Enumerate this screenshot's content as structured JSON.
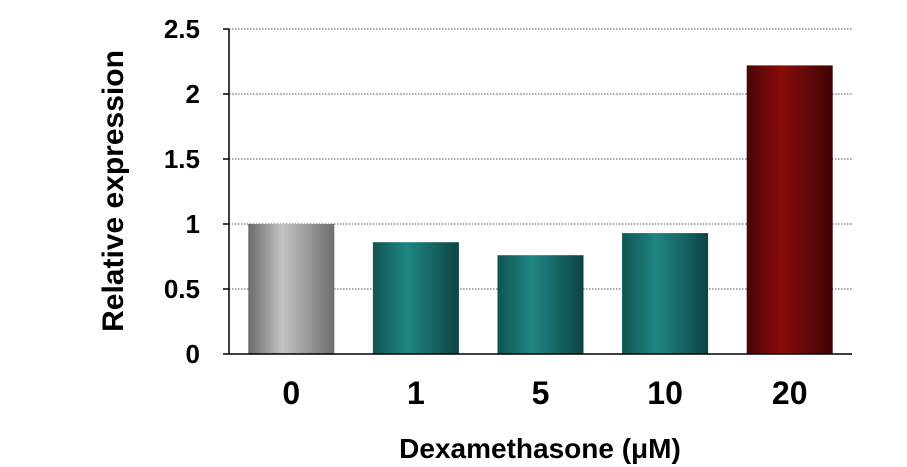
{
  "chart_data": {
    "type": "bar",
    "xlabel": "Dexamethasone (μM)",
    "ylabel": "Relative expression",
    "categories": [
      "0",
      "1",
      "5",
      "10",
      "20"
    ],
    "values": [
      1.0,
      0.86,
      0.76,
      0.93,
      2.22
    ],
    "ylim": [
      0,
      2.5
    ],
    "yticks": [
      "0",
      "0.5",
      "1",
      "1.5",
      "2",
      "2.5"
    ],
    "grid": true,
    "legend": "none",
    "colors": {
      "control": "#a6a6a6",
      "treatment": "#1a7a78",
      "high": "#7a0a0a"
    }
  }
}
